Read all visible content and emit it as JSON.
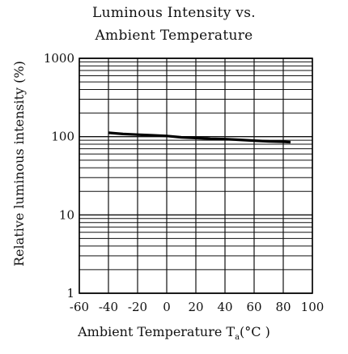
{
  "chart_data": {
    "type": "line",
    "title_line1": "Luminous Intensity vs.",
    "title_line2": "Ambient Temperature",
    "ylabel": "Relative luminous intensity (%)",
    "xlabel_main": "Ambient Temperature T",
    "xlabel_sub": "a",
    "xlabel_unit": "(°C )",
    "xlim": [
      -60,
      100
    ],
    "ylim": [
      1,
      1000
    ],
    "yscale": "log",
    "grid": true,
    "x_ticks": [
      -60,
      -40,
      -20,
      0,
      20,
      40,
      60,
      80,
      100
    ],
    "x_tick_labels": [
      "-60",
      "-40",
      "-20",
      "0",
      "20",
      "40",
      "60",
      "80",
      "100"
    ],
    "y_ticks": [
      1,
      10,
      100,
      1000
    ],
    "y_tick_labels": [
      "1",
      "10",
      "100",
      "1000"
    ],
    "series": [
      {
        "x": [
          -40,
          -30,
          -20,
          -10,
          0,
          10,
          20,
          30,
          40,
          50,
          60,
          70,
          80,
          85
        ],
        "y": [
          112,
          108,
          106,
          104,
          102,
          98,
          96,
          94,
          93,
          91,
          89,
          87,
          86,
          85
        ]
      }
    ],
    "line_color": "#000000"
  }
}
